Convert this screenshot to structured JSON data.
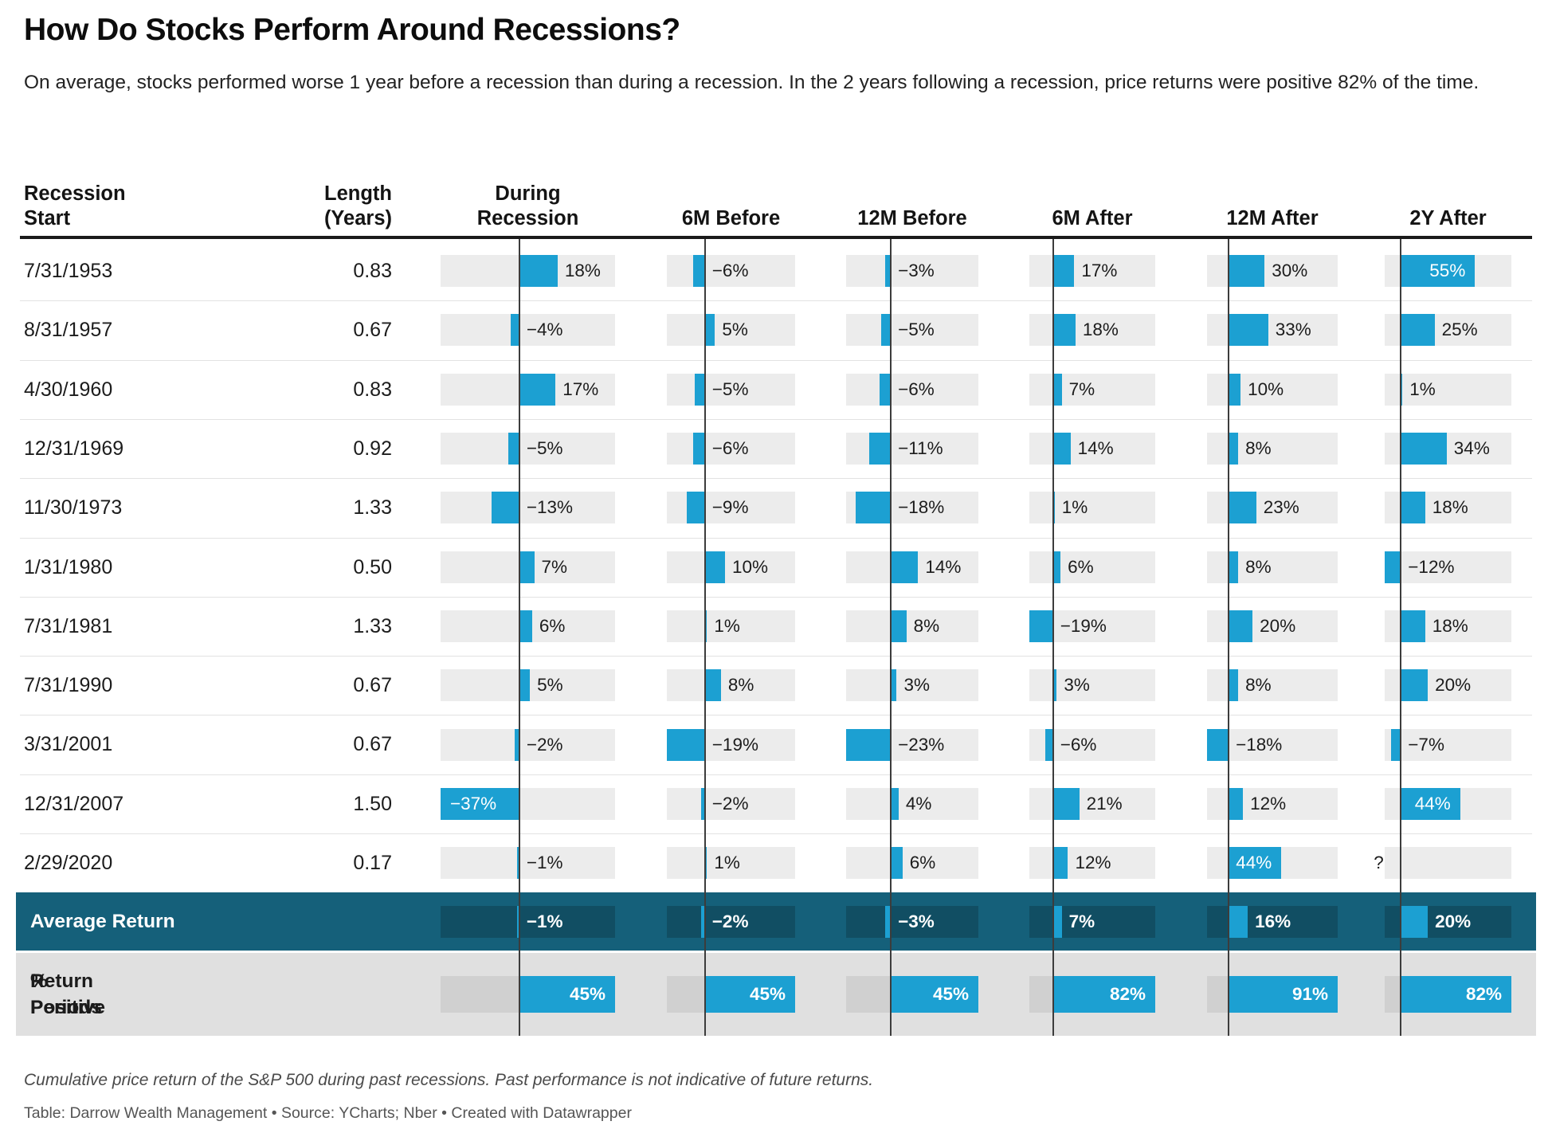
{
  "title": "How Do Stocks Perform Around Recessions?",
  "description": "On average, stocks performed worse 1 year before a recession than during a recession. In the 2 years following a recession, price returns were positive 82% of the time.",
  "footnote": "Cumulative price return of the S&P 500 during past recessions. Past performance is not indicative of future returns.",
  "credit": "Table: Darrow Wealth Management • Source: YCharts; Nber • Created with Datawrapper",
  "colors": {
    "bar": "#1CA0D2",
    "track": "#ECECEC",
    "average_row_bg": "#15607A",
    "average_track": "#114E63",
    "positive_row_bg": "#E0E0E0",
    "positive_track": "#D0D0D0",
    "axis_line": "#3C3C3C",
    "header_rule": "#1A1A1A",
    "separator": "#E2E2E2",
    "text": "#1C1C1C",
    "inside_label": "#FFFFFF"
  },
  "chart_data": {
    "type": "table",
    "title": "How Do Stocks Perform Around Recessions?",
    "columns": [
      [
        "Recession",
        "Start"
      ],
      [
        "Length",
        "(Years)"
      ],
      [
        "During",
        "Recession"
      ],
      [
        "6M Before"
      ],
      [
        "12M Before"
      ],
      [
        "6M After"
      ],
      [
        "12M After"
      ],
      [
        "2Y After"
      ]
    ],
    "bar_columns": [
      "During Recession",
      "6M Before",
      "12M Before",
      "6M After",
      "12M After",
      "2Y After"
    ],
    "rows": [
      {
        "start": "7/31/1953",
        "length": "0.83",
        "values": [
          18,
          -6,
          -3,
          17,
          30,
          55
        ]
      },
      {
        "start": "8/31/1957",
        "length": "0.67",
        "values": [
          -4,
          5,
          -5,
          18,
          33,
          25
        ]
      },
      {
        "start": "4/30/1960",
        "length": "0.83",
        "values": [
          17,
          -5,
          -6,
          7,
          10,
          1
        ]
      },
      {
        "start": "12/31/1969",
        "length": "0.92",
        "values": [
          -5,
          -6,
          -11,
          14,
          8,
          34
        ]
      },
      {
        "start": "11/30/1973",
        "length": "1.33",
        "values": [
          -13,
          -9,
          -18,
          1,
          23,
          18
        ]
      },
      {
        "start": "1/31/1980",
        "length": "0.50",
        "values": [
          7,
          10,
          14,
          6,
          8,
          -12
        ]
      },
      {
        "start": "7/31/1981",
        "length": "1.33",
        "values": [
          6,
          1,
          8,
          -19,
          20,
          18
        ]
      },
      {
        "start": "7/31/1990",
        "length": "0.67",
        "values": [
          5,
          8,
          3,
          3,
          8,
          20
        ]
      },
      {
        "start": "3/31/2001",
        "length": "0.67",
        "values": [
          -2,
          -19,
          -23,
          -6,
          -18,
          -7
        ]
      },
      {
        "start": "12/31/2007",
        "length": "1.50",
        "values": [
          -37,
          -2,
          4,
          21,
          12,
          44
        ]
      },
      {
        "start": "2/29/2020",
        "length": "0.17",
        "values": [
          -1,
          1,
          6,
          12,
          44,
          null
        ]
      }
    ],
    "average_row": {
      "label": "Average Return",
      "values": [
        -1,
        -2,
        -3,
        7,
        16,
        20
      ]
    },
    "positive_row": {
      "label_lines": [
        "% Positive",
        "Return Periods"
      ],
      "values": [
        45,
        45,
        45,
        82,
        91,
        82
      ]
    },
    "missing_marker": "?"
  }
}
